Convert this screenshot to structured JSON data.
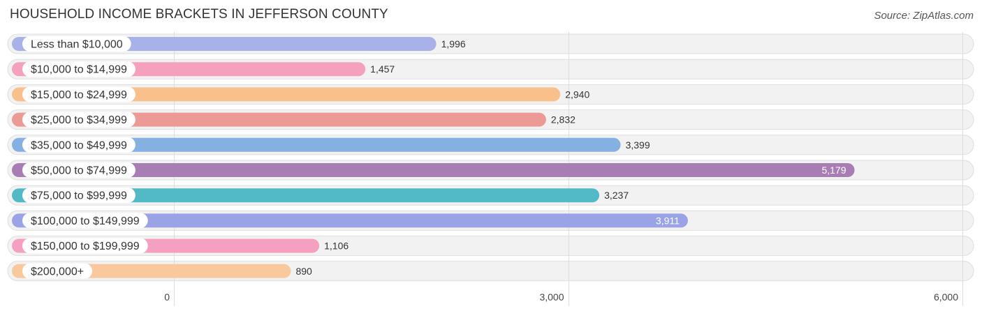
{
  "chart_data": {
    "type": "bar",
    "orientation": "horizontal",
    "title": "HOUSEHOLD INCOME BRACKETS IN JEFFERSON COUNTY",
    "source": "Source: ZipAtlas.com",
    "categories": [
      "Less than $10,000",
      "$10,000 to $14,999",
      "$15,000 to $24,999",
      "$25,000 to $34,999",
      "$35,000 to $49,999",
      "$50,000 to $74,999",
      "$75,000 to $99,999",
      "$100,000 to $149,999",
      "$150,000 to $199,999",
      "$200,000+"
    ],
    "values": [
      1996,
      1457,
      2940,
      2832,
      3399,
      5179,
      3237,
      3911,
      1106,
      890
    ],
    "value_labels": [
      "1,996",
      "1,457",
      "2,940",
      "2,832",
      "3,399",
      "5,179",
      "3,237",
      "3,911",
      "1,106",
      "890"
    ],
    "colors": [
      "#a8b2e8",
      "#f5a0bd",
      "#f9c08c",
      "#ec9a96",
      "#84b0e2",
      "#a87db4",
      "#52b9c6",
      "#9aa3e6",
      "#f5a0c0",
      "#f9c89c"
    ],
    "xlim": [
      0,
      6000
    ],
    "ticks": [
      {
        "value": 0,
        "label": "0"
      },
      {
        "value": 3000,
        "label": "3,000"
      },
      {
        "value": 6000,
        "label": "6,000"
      }
    ],
    "grid": true,
    "legend": "none"
  }
}
